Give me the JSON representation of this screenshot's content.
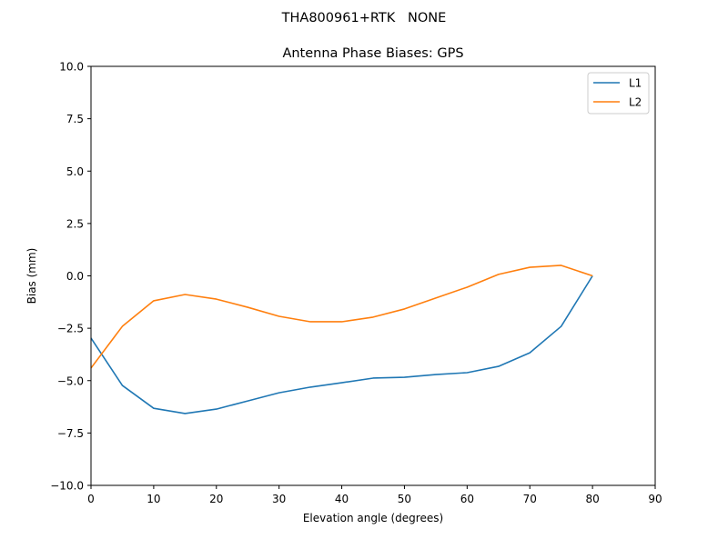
{
  "figure": {
    "suptitle": "THA800961+RTK   NONE"
  },
  "chart_data": {
    "type": "line",
    "title": "Antenna Phase Biases: GPS",
    "suptitle": "THA800961+RTK   NONE",
    "xlabel": "Elevation angle (degrees)",
    "ylabel": "Bias (mm)",
    "xlim": [
      0,
      90
    ],
    "ylim": [
      -10,
      10
    ],
    "xticks": [
      0,
      10,
      20,
      30,
      40,
      50,
      60,
      70,
      80,
      90
    ],
    "yticks": [
      10.0,
      7.5,
      5.0,
      2.5,
      0.0,
      -2.5,
      -5.0,
      -7.5,
      -10.0
    ],
    "ytick_labels": [
      "10.0",
      "7.5",
      "5.0",
      "2.5",
      "0.0",
      "−2.5",
      "−5.0",
      "−7.5",
      "−10.0"
    ],
    "grid": false,
    "legend_position": "upper right",
    "x": [
      0,
      5,
      10,
      15,
      20,
      25,
      30,
      35,
      40,
      45,
      50,
      55,
      60,
      65,
      70,
      75,
      80
    ],
    "series": [
      {
        "name": "L1",
        "color": "#1f77b4",
        "values": [
          -2.97,
          -5.23,
          -6.32,
          -6.57,
          -6.36,
          -5.97,
          -5.58,
          -5.31,
          -5.1,
          -4.88,
          -4.84,
          -4.71,
          -4.62,
          -4.32,
          -3.67,
          -2.41,
          0.0
        ]
      },
      {
        "name": "L2",
        "color": "#ff7f0e",
        "values": [
          -4.4,
          -2.41,
          -1.19,
          -0.89,
          -1.11,
          -1.5,
          -1.93,
          -2.19,
          -2.19,
          -1.97,
          -1.58,
          -1.06,
          -0.54,
          0.07,
          0.41,
          0.5,
          0.0
        ]
      }
    ]
  }
}
